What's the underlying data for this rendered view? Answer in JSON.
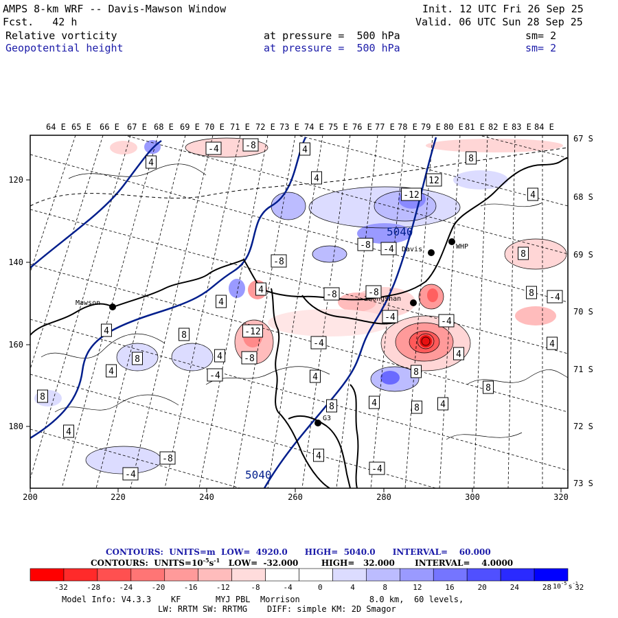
{
  "header": {
    "title": "AMPS 8-km WRF -- Davis-Mawson Window",
    "init": "Init. 12 UTC Fri 26 Sep 25",
    "fcst": "Fcst.   42 h",
    "valid": "Valid. 06 UTC Sun 28 Sep 25",
    "field1_name": "Relative vorticity",
    "field1_level": "at pressure =  500 hPa",
    "field1_sm": "sm= 2",
    "field2_name": "Geopotential height",
    "field2_level": "at pressure =  500 hPa",
    "field2_sm": "sm= 2"
  },
  "map": {
    "top_lon_labels": [
      "64 E",
      "65 E",
      "66 E",
      "67 E",
      "68 E",
      "69 E",
      "70 E",
      "71 E",
      "72 E",
      "73 E",
      "74 E",
      "75 E",
      "76 E",
      "77 E",
      "78 E",
      "79 E",
      "80 E",
      "81 E",
      "82 E",
      "83 E",
      "84 E"
    ],
    "right_lat_labels": [
      "67 S",
      "68 S",
      "69 S",
      "70 S",
      "71 S",
      "72 S",
      "73 S"
    ],
    "bottom_grid_labels": [
      "200",
      "220",
      "240",
      "260",
      "280",
      "300",
      "320"
    ],
    "left_grid_labels": [
      "120",
      "140",
      "160",
      "180"
    ],
    "stations": [
      {
        "name": "Mawson"
      },
      {
        "name": "Davis"
      },
      {
        "name": "WHP"
      },
      {
        "name": "Zhongshan"
      },
      {
        "name": "G3"
      }
    ],
    "height_labels": [
      "5040",
      "5040"
    ],
    "vort_contour_labels": [
      "-4",
      "-8",
      "4",
      "4",
      "4",
      "8",
      "12",
      "-12",
      "-8",
      "-4",
      "-8",
      "4",
      "4",
      "-8",
      "-12",
      "-8",
      "4",
      "8",
      "4",
      "8",
      "4",
      "-4",
      "-8",
      "-4",
      "-4",
      "4",
      "8",
      "4",
      "8",
      "8",
      "4",
      "8",
      "4",
      "-4",
      "4",
      "8",
      "8",
      "4",
      "-4",
      "-4",
      "4",
      "-8",
      "-4",
      "4",
      "8",
      "4"
    ]
  },
  "footer": {
    "contour1": "CONTOURS:  UNITS=m  LOW=  4920.0      HIGH=  5040.0      INTERVAL=    60.000",
    "contour2_a": "CONTOURS:  UNITS=10",
    "contour2_b": "s",
    "contour2_c": "   LOW=  -32.000        HIGH=   32.000       INTERVAL=    4.0000",
    "exp": "-5",
    "exp_neg": "-1",
    "colorbar_ticks": [
      "-32",
      "-28",
      "-24",
      "-20",
      "-16",
      "-12",
      "-8",
      "-4",
      "0",
      "4",
      "8",
      "12",
      "16",
      "20",
      "24",
      "28",
      "32"
    ],
    "colorbar_unit": "10",
    "colorbar_unit_exp": "-5",
    "colorbar_unit_s": "s",
    "colorbar_colors": [
      "#ff0000",
      "#ff2a2a",
      "#ff5050",
      "#ff7575",
      "#ff9a9a",
      "#ffbcbc",
      "#ffdcdc",
      "#ffffff",
      "#ffffff",
      "#dcdcff",
      "#bcbcff",
      "#9a9aff",
      "#7575ff",
      "#5050ff",
      "#2a2aff",
      "#0000ff"
    ],
    "model_info1": "Model Info: V4.3.3    KF       MYJ PBL  Morrison              8.0 km,  60 levels,",
    "model_info2": "LW: RRTM SW: RRTMG    DIFF: simple KM: 2D Smagor"
  }
}
